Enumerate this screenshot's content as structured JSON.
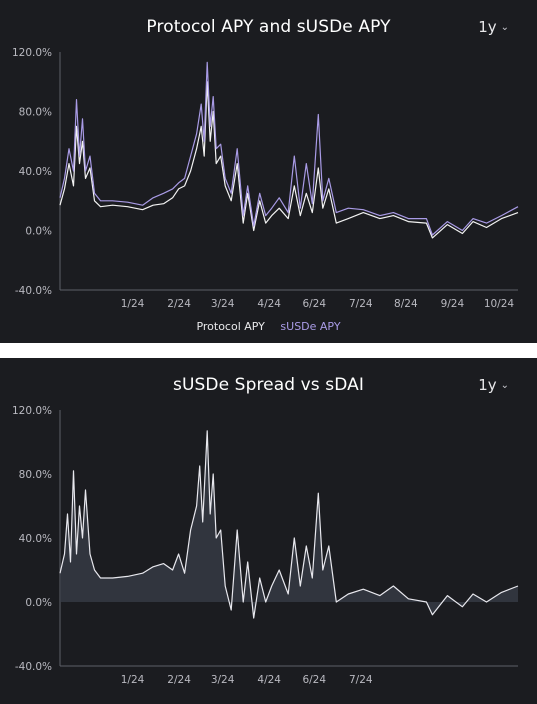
{
  "panels": [
    {
      "title": "Protocol APY and sUSDe APY",
      "range_selector": "1y",
      "legend": [
        "Protocol APY",
        "sUSDe APY"
      ],
      "colors": {
        "protocol": "#f2f2f2",
        "susde": "#a99be6"
      }
    },
    {
      "title": "sUSDe Spread vs sDAI",
      "range_selector": "1y",
      "colors": {
        "spread": "#e8e8ee",
        "fill": "#3a3d48"
      }
    }
  ],
  "chart_data": [
    {
      "type": "line",
      "title": "Protocol APY and sUSDe APY",
      "y_ticks": [
        "120.0%",
        "80.0%",
        "40.0%",
        "0.0%",
        "-40.0%"
      ],
      "ylim": [
        -40,
        120
      ],
      "x_ticks": [
        "1/24",
        "2/24",
        "3/24",
        "4/24",
        "6/24",
        "7/24",
        "8/24",
        "9/24",
        "10/24"
      ],
      "xlim": [
        "2023-12-01",
        "2024-10-01"
      ],
      "grid": false,
      "legend_position": "bottom-center",
      "series": [
        {
          "name": "Protocol APY",
          "points": [
            [
              "2023-12-01",
              17
            ],
            [
              "2023-12-04",
              28
            ],
            [
              "2023-12-07",
              45
            ],
            [
              "2023-12-10",
              30
            ],
            [
              "2023-12-12",
              70
            ],
            [
              "2023-12-14",
              45
            ],
            [
              "2023-12-16",
              60
            ],
            [
              "2023-12-18",
              35
            ],
            [
              "2023-12-21",
              42
            ],
            [
              "2023-12-24",
              20
            ],
            [
              "2023-12-28",
              16
            ],
            [
              "2024-01-05",
              17
            ],
            [
              "2024-01-15",
              16
            ],
            [
              "2024-01-25",
              14
            ],
            [
              "2024-02-01",
              17
            ],
            [
              "2024-02-08",
              18
            ],
            [
              "2024-02-14",
              22
            ],
            [
              "2024-02-18",
              28
            ],
            [
              "2024-02-22",
              30
            ],
            [
              "2024-02-26",
              40
            ],
            [
              "2024-03-01",
              55
            ],
            [
              "2024-03-04",
              70
            ],
            [
              "2024-03-06",
              50
            ],
            [
              "2024-03-08",
              100
            ],
            [
              "2024-03-10",
              60
            ],
            [
              "2024-03-12",
              80
            ],
            [
              "2024-03-14",
              45
            ],
            [
              "2024-03-17",
              50
            ],
            [
              "2024-03-20",
              30
            ],
            [
              "2024-03-24",
              20
            ],
            [
              "2024-03-28",
              45
            ],
            [
              "2024-04-01",
              5
            ],
            [
              "2024-04-04",
              25
            ],
            [
              "2024-04-08",
              0
            ],
            [
              "2024-04-12",
              20
            ],
            [
              "2024-04-16",
              5
            ],
            [
              "2024-04-20",
              10
            ],
            [
              "2024-04-25",
              15
            ],
            [
              "2024-05-01",
              8
            ],
            [
              "2024-05-05",
              30
            ],
            [
              "2024-05-09",
              10
            ],
            [
              "2024-05-13",
              25
            ],
            [
              "2024-05-17",
              12
            ],
            [
              "2024-05-21",
              42
            ],
            [
              "2024-05-24",
              15
            ],
            [
              "2024-05-28",
              28
            ],
            [
              "2024-06-02",
              5
            ],
            [
              "2024-06-10",
              8
            ],
            [
              "2024-06-20",
              12
            ],
            [
              "2024-07-01",
              8
            ],
            [
              "2024-07-10",
              10
            ],
            [
              "2024-07-20",
              6
            ],
            [
              "2024-08-01",
              5
            ],
            [
              "2024-08-05",
              -5
            ],
            [
              "2024-08-15",
              4
            ],
            [
              "2024-08-25",
              -2
            ],
            [
              "2024-09-01",
              6
            ],
            [
              "2024-09-10",
              2
            ],
            [
              "2024-09-20",
              8
            ],
            [
              "2024-10-01",
              12
            ]
          ]
        },
        {
          "name": "sUSDe APY",
          "points": [
            [
              "2023-12-01",
              22
            ],
            [
              "2023-12-04",
              35
            ],
            [
              "2023-12-07",
              55
            ],
            [
              "2023-12-10",
              40
            ],
            [
              "2023-12-12",
              88
            ],
            [
              "2023-12-14",
              50
            ],
            [
              "2023-12-16",
              75
            ],
            [
              "2023-12-18",
              40
            ],
            [
              "2023-12-21",
              50
            ],
            [
              "2023-12-24",
              25
            ],
            [
              "2023-12-28",
              20
            ],
            [
              "2024-01-05",
              20
            ],
            [
              "2024-01-15",
              19
            ],
            [
              "2024-01-25",
              17
            ],
            [
              "2024-02-01",
              22
            ],
            [
              "2024-02-08",
              25
            ],
            [
              "2024-02-14",
              28
            ],
            [
              "2024-02-18",
              32
            ],
            [
              "2024-02-22",
              35
            ],
            [
              "2024-02-26",
              50
            ],
            [
              "2024-03-01",
              65
            ],
            [
              "2024-03-04",
              85
            ],
            [
              "2024-03-06",
              60
            ],
            [
              "2024-03-08",
              113
            ],
            [
              "2024-03-10",
              70
            ],
            [
              "2024-03-12",
              90
            ],
            [
              "2024-03-14",
              55
            ],
            [
              "2024-03-17",
              58
            ],
            [
              "2024-03-20",
              35
            ],
            [
              "2024-03-24",
              25
            ],
            [
              "2024-03-28",
              55
            ],
            [
              "2024-04-01",
              10
            ],
            [
              "2024-04-04",
              30
            ],
            [
              "2024-04-08",
              3
            ],
            [
              "2024-04-12",
              25
            ],
            [
              "2024-04-16",
              10
            ],
            [
              "2024-04-20",
              15
            ],
            [
              "2024-04-25",
              22
            ],
            [
              "2024-05-01",
              12
            ],
            [
              "2024-05-05",
              50
            ],
            [
              "2024-05-09",
              15
            ],
            [
              "2024-05-13",
              45
            ],
            [
              "2024-05-17",
              18
            ],
            [
              "2024-05-21",
              78
            ],
            [
              "2024-05-24",
              20
            ],
            [
              "2024-05-28",
              35
            ],
            [
              "2024-06-02",
              12
            ],
            [
              "2024-06-10",
              15
            ],
            [
              "2024-06-20",
              14
            ],
            [
              "2024-07-01",
              10
            ],
            [
              "2024-07-10",
              12
            ],
            [
              "2024-07-20",
              8
            ],
            [
              "2024-08-01",
              8
            ],
            [
              "2024-08-05",
              -3
            ],
            [
              "2024-08-15",
              6
            ],
            [
              "2024-08-25",
              0
            ],
            [
              "2024-09-01",
              8
            ],
            [
              "2024-09-10",
              5
            ],
            [
              "2024-09-20",
              10
            ],
            [
              "2024-10-01",
              16
            ]
          ]
        }
      ]
    },
    {
      "type": "area",
      "title": "sUSDe Spread vs sDAI",
      "y_ticks": [
        "120.0%",
        "80.0%",
        "40.0%",
        "0.0%",
        "-40.0%"
      ],
      "ylim": [
        -40,
        120
      ],
      "x_ticks": [
        "1/24",
        "2/24",
        "3/24",
        "4/24",
        "6/24",
        "7/24"
      ],
      "xlim": [
        "2023-12-01",
        "2024-10-01"
      ],
      "grid": false,
      "series": [
        {
          "points": [
            [
              "2023-12-01",
              18
            ],
            [
              "2023-12-04",
              30
            ],
            [
              "2023-12-06",
              55
            ],
            [
              "2023-12-08",
              25
            ],
            [
              "2023-12-10",
              82
            ],
            [
              "2023-12-12",
              30
            ],
            [
              "2023-12-14",
              60
            ],
            [
              "2023-12-16",
              40
            ],
            [
              "2023-12-18",
              70
            ],
            [
              "2023-12-21",
              30
            ],
            [
              "2023-12-24",
              20
            ],
            [
              "2023-12-28",
              15
            ],
            [
              "2024-01-05",
              15
            ],
            [
              "2024-01-15",
              16
            ],
            [
              "2024-01-25",
              18
            ],
            [
              "2024-02-01",
              22
            ],
            [
              "2024-02-08",
              24
            ],
            [
              "2024-02-14",
              20
            ],
            [
              "2024-02-18",
              30
            ],
            [
              "2024-02-22",
              18
            ],
            [
              "2024-02-26",
              45
            ],
            [
              "2024-03-01",
              60
            ],
            [
              "2024-03-03",
              85
            ],
            [
              "2024-03-05",
              50
            ],
            [
              "2024-03-08",
              107
            ],
            [
              "2024-03-10",
              55
            ],
            [
              "2024-03-12",
              80
            ],
            [
              "2024-03-14",
              40
            ],
            [
              "2024-03-17",
              45
            ],
            [
              "2024-03-20",
              10
            ],
            [
              "2024-03-24",
              -5
            ],
            [
              "2024-03-28",
              45
            ],
            [
              "2024-04-01",
              0
            ],
            [
              "2024-04-04",
              25
            ],
            [
              "2024-04-08",
              -10
            ],
            [
              "2024-04-12",
              15
            ],
            [
              "2024-04-16",
              0
            ],
            [
              "2024-04-20",
              10
            ],
            [
              "2024-04-25",
              20
            ],
            [
              "2024-05-01",
              5
            ],
            [
              "2024-05-05",
              40
            ],
            [
              "2024-05-09",
              10
            ],
            [
              "2024-05-13",
              35
            ],
            [
              "2024-05-17",
              15
            ],
            [
              "2024-05-21",
              68
            ],
            [
              "2024-05-24",
              20
            ],
            [
              "2024-05-28",
              35
            ],
            [
              "2024-06-02",
              0
            ],
            [
              "2024-06-10",
              5
            ],
            [
              "2024-06-20",
              8
            ],
            [
              "2024-07-01",
              4
            ],
            [
              "2024-07-10",
              10
            ],
            [
              "2024-07-20",
              2
            ],
            [
              "2024-08-01",
              0
            ],
            [
              "2024-08-05",
              -8
            ],
            [
              "2024-08-15",
              4
            ],
            [
              "2024-08-25",
              -3
            ],
            [
              "2024-09-01",
              5
            ],
            [
              "2024-09-10",
              0
            ],
            [
              "2024-09-20",
              6
            ],
            [
              "2024-10-01",
              10
            ]
          ]
        }
      ]
    }
  ]
}
